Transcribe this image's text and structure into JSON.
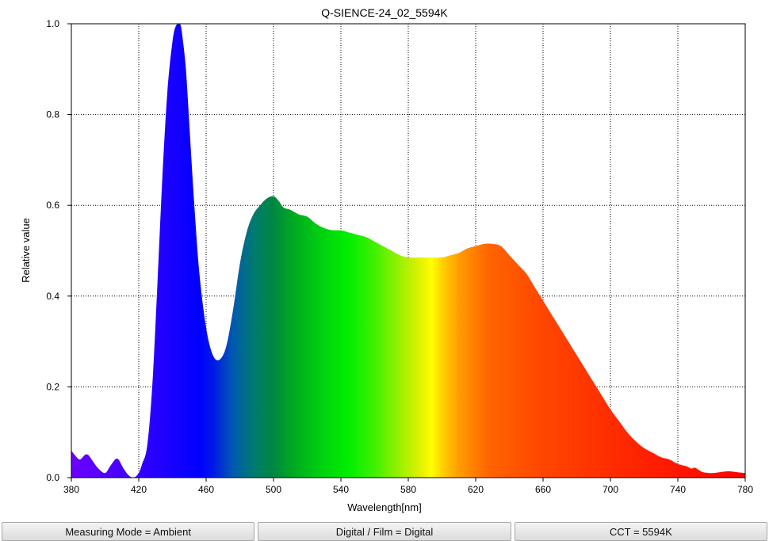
{
  "chart_data": {
    "type": "area",
    "title": "Q-SIENCE-24_02_5594K",
    "xlabel": "Wavelength[nm]",
    "ylabel": "Relative value",
    "xlim": [
      380,
      780
    ],
    "ylim": [
      0,
      1.0
    ],
    "x_ticks": [
      380,
      420,
      460,
      500,
      540,
      580,
      620,
      660,
      700,
      740,
      780
    ],
    "y_ticks": [
      0.0,
      0.2,
      0.4,
      0.6,
      0.8,
      1.0
    ],
    "x_tick_labels": [
      "380",
      "420",
      "460",
      "500",
      "540",
      "580",
      "620",
      "660",
      "700",
      "740",
      "780"
    ],
    "y_tick_labels": [
      "0.0",
      "0.2",
      "0.4",
      "0.6",
      "0.8",
      "1.0"
    ],
    "grid": true,
    "fill": "spectral-gradient",
    "x": [
      380,
      382,
      385,
      388,
      390,
      393,
      396,
      400,
      403,
      406,
      408,
      411,
      414,
      417,
      420,
      422,
      425,
      428,
      431,
      434,
      437,
      440,
      442,
      444,
      445,
      446,
      448,
      450,
      453,
      456,
      460,
      464,
      468,
      472,
      476,
      480,
      484,
      488,
      492,
      496,
      500,
      503,
      506,
      510,
      515,
      520,
      525,
      530,
      535,
      540,
      545,
      550,
      555,
      560,
      565,
      570,
      575,
      580,
      585,
      590,
      595,
      600,
      605,
      610,
      615,
      620,
      625,
      630,
      635,
      640,
      645,
      650,
      655,
      660,
      665,
      670,
      675,
      680,
      685,
      690,
      695,
      700,
      705,
      710,
      715,
      720,
      725,
      730,
      735,
      740,
      745,
      748,
      750,
      752,
      755,
      760,
      765,
      770,
      775,
      780
    ],
    "y": [
      0.06,
      0.05,
      0.04,
      0.05,
      0.05,
      0.035,
      0.02,
      0.01,
      0.025,
      0.04,
      0.04,
      0.02,
      0.005,
      0.0,
      0.01,
      0.03,
      0.07,
      0.2,
      0.42,
      0.66,
      0.85,
      0.96,
      0.995,
      1.0,
      0.995,
      0.97,
      0.9,
      0.78,
      0.6,
      0.45,
      0.33,
      0.27,
      0.26,
      0.29,
      0.37,
      0.47,
      0.54,
      0.58,
      0.6,
      0.615,
      0.62,
      0.61,
      0.595,
      0.59,
      0.58,
      0.575,
      0.56,
      0.55,
      0.545,
      0.545,
      0.54,
      0.535,
      0.53,
      0.52,
      0.51,
      0.5,
      0.49,
      0.485,
      0.485,
      0.485,
      0.485,
      0.485,
      0.49,
      0.495,
      0.505,
      0.51,
      0.515,
      0.515,
      0.51,
      0.49,
      0.47,
      0.45,
      0.42,
      0.39,
      0.36,
      0.33,
      0.3,
      0.27,
      0.24,
      0.21,
      0.18,
      0.15,
      0.125,
      0.1,
      0.08,
      0.065,
      0.055,
      0.045,
      0.04,
      0.03,
      0.025,
      0.02,
      0.022,
      0.018,
      0.012,
      0.01,
      0.012,
      0.014,
      0.012,
      0.01
    ]
  },
  "status_bar": {
    "measuring_mode": "Measuring Mode = Ambient",
    "digital_film": "Digital / Film = Digital",
    "cct": "CCT = 5594K"
  }
}
